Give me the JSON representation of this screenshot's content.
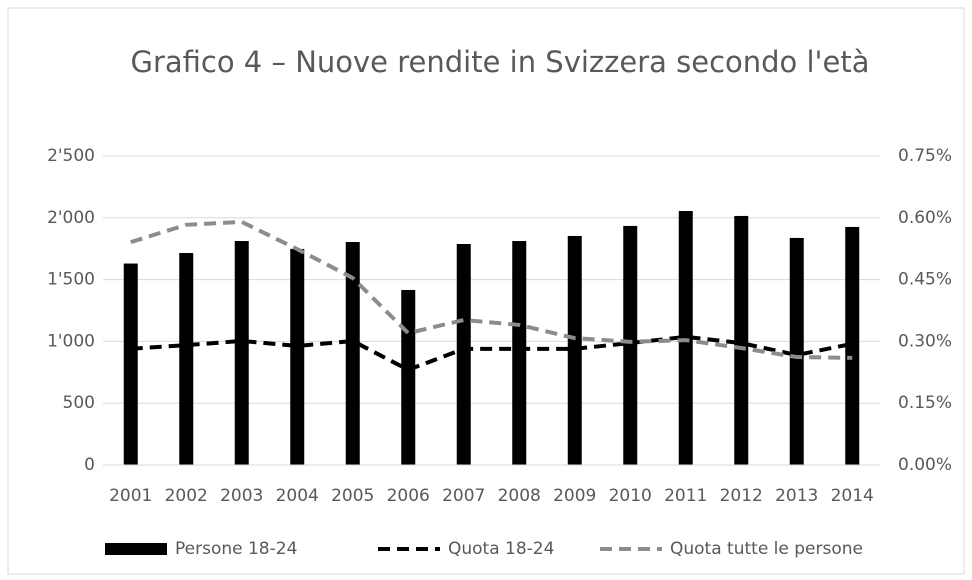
{
  "chart_data": {
    "type": "bar_line",
    "title": "Grafico 4 – Nuove rendite in Svizzera secondo l'età",
    "categories": [
      "2001",
      "2002",
      "2003",
      "2004",
      "2005",
      "2006",
      "2007",
      "2008",
      "2009",
      "2010",
      "2011",
      "2012",
      "2013",
      "2014"
    ],
    "series": [
      {
        "name": "Persone 18-24",
        "type": "bar",
        "color": "#000000",
        "axis": "y",
        "values": [
          1630,
          1715,
          1812,
          1748,
          1804,
          1416,
          1788,
          1812,
          1853,
          1934,
          2055,
          2015,
          1837,
          1926
        ]
      },
      {
        "name": "Quota 18-24",
        "type": "line",
        "color": "#000000",
        "axis": "y2",
        "values": [
          0.282,
          0.291,
          0.301,
          0.289,
          0.301,
          0.231,
          0.282,
          0.282,
          0.282,
          0.296,
          0.311,
          0.296,
          0.267,
          0.294
        ]
      },
      {
        "name": "Quota tutte le persone",
        "type": "line",
        "color": "#8c8c8c",
        "axis": "y2",
        "values": [
          0.541,
          0.583,
          0.59,
          0.524,
          0.454,
          0.32,
          0.352,
          0.34,
          0.308,
          0.299,
          0.303,
          0.284,
          0.262,
          0.26
        ]
      }
    ],
    "ylim": [
      0,
      2500
    ],
    "yticks": [
      0,
      500,
      {
        "value": 1000,
        "label": "1'000"
      },
      {
        "value": 1500,
        "label": "1'500"
      },
      {
        "value": 2000,
        "label": "2'000"
      },
      {
        "value": 2500,
        "label": "2'500"
      }
    ],
    "y2lim": [
      0,
      0.75
    ],
    "y2ticks": [
      {
        "value": 0,
        "label": "0.00%"
      },
      {
        "value": 0.15,
        "label": "0.15%"
      },
      {
        "value": 0.3,
        "label": "0.30%"
      },
      {
        "value": 0.45,
        "label": "0.45%"
      },
      {
        "value": 0.6,
        "label": "0.60%"
      },
      {
        "value": 0.75,
        "label": "0.75%"
      }
    ],
    "grid": true,
    "legend": "bottom"
  }
}
